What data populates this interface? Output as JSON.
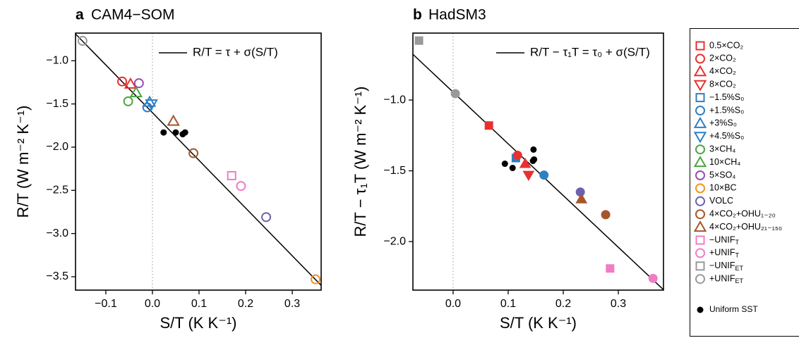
{
  "legend": [
    {
      "name": "0.5×CO₂",
      "color": "#e8312f",
      "marker": "square"
    },
    {
      "name": "2×CO₂",
      "color": "#e8312f",
      "marker": "circle"
    },
    {
      "name": "4×CO₂",
      "color": "#e8312f",
      "marker": "triangle"
    },
    {
      "name": "8×CO₂",
      "color": "#e8312f",
      "marker": "triangle-down"
    },
    {
      "name": "−1.5%S₀",
      "color": "#2f7fc1",
      "marker": "square"
    },
    {
      "name": "+1.5%S₀",
      "color": "#2f7fc1",
      "marker": "circle"
    },
    {
      "name": "+3%S₀",
      "color": "#2f7fc1",
      "marker": "triangle"
    },
    {
      "name": "+4.5%S₀",
      "color": "#2f7fc1",
      "marker": "triangle-down"
    },
    {
      "name": "3×CH₄",
      "color": "#4aa640",
      "marker": "circle"
    },
    {
      "name": "10×CH₄",
      "color": "#4aa640",
      "marker": "triangle"
    },
    {
      "name": "5×SO₄",
      "color": "#9650b0",
      "marker": "circle"
    },
    {
      "name": "10×BC",
      "color": "#f5921e",
      "marker": "circle"
    },
    {
      "name": "VOLC",
      "color": "#6a62b0",
      "marker": "circle"
    },
    {
      "name": "4×CO₂+OHU₁₋₂₀",
      "color": "#a5562a",
      "marker": "circle"
    },
    {
      "name": "4×CO₂+OHU₂₁₋₁₅₀",
      "color": "#a5562a",
      "marker": "triangle"
    },
    {
      "name": "−UNIF",
      "subscript": "T",
      "color": "#f07cc4",
      "marker": "square"
    },
    {
      "name": "+UNIF",
      "subscript": "T",
      "color": "#f07cc4",
      "marker": "circle"
    },
    {
      "name": "−UNIF",
      "subscript": "ET",
      "color": "#9a9a9a",
      "marker": "square"
    },
    {
      "name": "+UNIF",
      "subscript": "ET",
      "color": "#9a9a9a",
      "marker": "circle"
    },
    {
      "name": "Uniform SST",
      "color": "#000000",
      "marker": "dot"
    }
  ],
  "chart_data": [
    {
      "type": "scatter",
      "label": "a",
      "title": "CAM4−SOM",
      "filled": false,
      "x_label": "S/T (K K⁻¹)",
      "y_label": "R/T (W m⁻² K⁻¹)",
      "xlim": [
        -0.165,
        0.362
      ],
      "ylim": [
        -3.655,
        -0.68
      ],
      "xticks": [
        {
          "value": -0.1,
          "label": "−0.1"
        },
        {
          "value": 0,
          "label": "0.0"
        },
        0.1,
        0.2,
        0.3
      ],
      "yticks": [
        {
          "value": -3.5,
          "label": "−3.5"
        },
        {
          "value": -3.0,
          "label": "−3.0"
        },
        {
          "value": -2.5,
          "label": "−2.5"
        },
        {
          "value": -2.0,
          "label": "−2.0"
        },
        {
          "value": -1.5,
          "label": "−1.5"
        },
        {
          "value": -1.0,
          "label": "−1.0"
        }
      ],
      "vline_x": 0,
      "fit": {
        "label": "R/T = τ + σ(S/T)",
        "x": [
          -0.165,
          0.362
        ],
        "y": [
          -0.69,
          -3.6
        ]
      },
      "series": [
        {
          "name": "2×CO₂",
          "x": [
            -0.065
          ],
          "values": [
            -1.24
          ]
        },
        {
          "name": "4×CO₂",
          "x": [
            -0.047
          ],
          "values": [
            -1.27
          ]
        },
        {
          "name": "+1.5%S₀",
          "x": [
            -0.011
          ],
          "values": [
            -1.54
          ]
        },
        {
          "name": "+3%S₀",
          "x": [
            -0.006
          ],
          "values": [
            -1.48
          ]
        },
        {
          "name": "+4.5%S₀",
          "x": [
            -0.002
          ],
          "values": [
            -1.5
          ]
        },
        {
          "name": "3×CH₄",
          "x": [
            -0.052
          ],
          "values": [
            -1.47
          ]
        },
        {
          "name": "10×CH₄",
          "x": [
            -0.035
          ],
          "values": [
            -1.37
          ]
        },
        {
          "name": "5×SO₄",
          "x": [
            -0.029
          ],
          "values": [
            -1.26
          ]
        },
        {
          "name": "10×BC",
          "x": [
            0.35
          ],
          "values": [
            -3.53
          ]
        },
        {
          "name": "VOLC",
          "x": [
            0.244
          ],
          "values": [
            -2.81
          ]
        },
        {
          "name": "4×CO₂+OHU₁₋₂₀",
          "x": [
            0.088
          ],
          "values": [
            -2.07
          ]
        },
        {
          "name": "4×CO₂+OHU₂₁₋₁₅₀",
          "x": [
            0.045
          ],
          "values": [
            -1.7
          ]
        },
        {
          "name": "−UNIF",
          "subscript": "T",
          "x": [
            0.17
          ],
          "values": [
            -2.33
          ]
        },
        {
          "name": "+UNIF",
          "subscript": "T",
          "x": [
            0.19
          ],
          "values": [
            -2.45
          ]
        },
        {
          "name": "+UNIF",
          "subscript": "ET",
          "x": [
            -0.15
          ],
          "values": [
            -0.77
          ]
        },
        {
          "name": "Uniform SST",
          "x": [
            0.024,
            0.05,
            0.065,
            0.07
          ],
          "values": [
            -1.83,
            -1.83,
            -1.85,
            -1.83
          ]
        }
      ]
    },
    {
      "type": "scatter",
      "label": "b",
      "title": "HadSM3",
      "filled": true,
      "x_label": "S/T (K K⁻¹)",
      "y_label": "R/T − τ₁T (W m⁻² K⁻¹)",
      "xlim": [
        -0.073,
        0.382
      ],
      "ylim": [
        -2.343,
        -0.527
      ],
      "xticks": [
        {
          "value": 0,
          "label": "0.0"
        },
        0.1,
        0.2,
        0.3
      ],
      "yticks": [
        {
          "value": -2.0,
          "label": "−2.0"
        },
        {
          "value": -1.5,
          "label": "−1.5"
        },
        {
          "value": -1.0,
          "label": "−1.0"
        }
      ],
      "vline_x": 0,
      "fit": {
        "label": "R/T − τ₁T = τ₀ + σ(S/T)",
        "x": [
          -0.073,
          0.382
        ],
        "y": [
          -0.677,
          -2.34
        ]
      },
      "series": [
        {
          "name": "−UNIF",
          "subscript": "ET",
          "x": [
            -0.062
          ],
          "values": [
            -0.58
          ]
        },
        {
          "name": "+UNIF",
          "subscript": "ET",
          "x": [
            0.004
          ],
          "values": [
            -0.955
          ]
        },
        {
          "name": "0.5×CO₂",
          "x": [
            0.065
          ],
          "values": [
            -1.18
          ]
        },
        {
          "name": "−1.5%S₀",
          "x": [
            0.114
          ],
          "values": [
            -1.41
          ]
        },
        {
          "name": "2×CO₂",
          "x": [
            0.117
          ],
          "values": [
            -1.39
          ]
        },
        {
          "name": "Uniform SST",
          "x": [
            0.094,
            0.108,
            0.146,
            0.147,
            0.145
          ],
          "values": [
            -1.45,
            -1.48,
            -1.35,
            -1.42,
            -1.43
          ]
        },
        {
          "name": "4×CO₂",
          "x": [
            0.131
          ],
          "values": [
            -1.45
          ]
        },
        {
          "name": "8×CO₂",
          "x": [
            0.137
          ],
          "values": [
            -1.53
          ]
        },
        {
          "name": "+1.5%S₀",
          "x": [
            0.165
          ],
          "values": [
            -1.53
          ]
        },
        {
          "name": "VOLC",
          "x": [
            0.231
          ],
          "values": [
            -1.65
          ]
        },
        {
          "name": "4×CO₂+OHU₂₁₋₁₅₀",
          "x": [
            0.233
          ],
          "values": [
            -1.7
          ]
        },
        {
          "name": "4×CO₂+OHU₁₋₂₀",
          "x": [
            0.277
          ],
          "values": [
            -1.81
          ]
        },
        {
          "name": "−UNIF",
          "subscript": "T",
          "x": [
            0.285
          ],
          "values": [
            -2.19
          ]
        },
        {
          "name": "+UNIF",
          "subscript": "T",
          "x": [
            0.363
          ],
          "values": [
            -2.26
          ]
        }
      ]
    }
  ]
}
